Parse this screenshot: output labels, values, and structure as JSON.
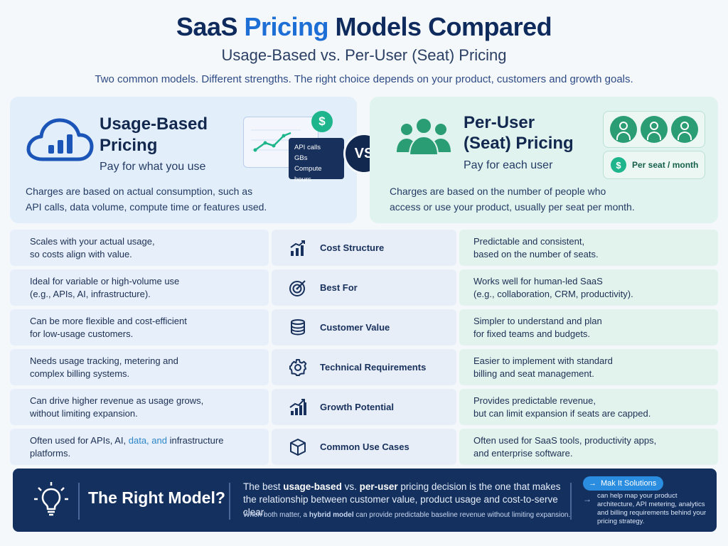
{
  "header": {
    "title_accent_pre": "SaaS",
    "title_accent": "Pricing",
    "title_rest": "Models Compared",
    "subtitle": "Usage-Based vs. Per-User (Seat) Pricing",
    "tagline": "Two common models. Different strengths. The right choice depends on your product, customers and growth goals."
  },
  "usage": {
    "title_line1": "Usage-Based",
    "title_line2": "Pricing",
    "subtitle": "Pay for what you use",
    "desc_line1": "Charges are based on actual consumption, such as",
    "desc_line2": "API calls, data volume, compute time or features used.",
    "icon": "cloud-bar-chart-icon",
    "metrics": [
      "API calls",
      "GBs",
      "Compute hours"
    ],
    "dollar_symbol": "$"
  },
  "vs_label": "VS",
  "seat": {
    "title_line1": "Per-User",
    "title_line2": "(Seat) Pricing",
    "subtitle": "Pay for each user",
    "desc_line1": "Charges are based on the number of people who",
    "desc_line2": "access or use your product, usually per seat per month.",
    "icon": "user-group-icon",
    "pill_label": "Per seat / month",
    "dollar_symbol": "$"
  },
  "rows": [
    {
      "left": "Scales with your actual usage,\nso costs align with value.",
      "mid": "Cost Structure",
      "icon": "chart-up-icon",
      "right": "Predictable and consistent,\nbased on the number of seats."
    },
    {
      "left": "Ideal for variable or high-volume use\n(e.g., APIs, AI, infrastructure).",
      "mid": "Best For",
      "icon": "target-icon",
      "right": "Works well for human-led SaaS\n(e.g., collaboration, CRM, productivity)."
    },
    {
      "left": "Can be more flexible and cost-efficient\nfor low-usage customers.",
      "mid": "Customer Value",
      "icon": "coins-icon",
      "right": "Simpler to understand and plan\nfor fixed teams and budgets."
    },
    {
      "left": "Needs usage tracking, metering and\ncomplex billing systems.",
      "mid": "Technical Requirements",
      "icon": "gear-icon",
      "right": "Easier to implement with standard\nbilling and seat management."
    },
    {
      "left": "Can drive higher revenue as usage grows,\nwithout limiting expansion.",
      "mid": "Growth Potential",
      "icon": "growth-chart-icon",
      "right": "Provides predictable revenue,\nbut can limit expansion if seats are capped."
    },
    {
      "left_pre": "Often used for APIs, AI, ",
      "left_hl": "data, and",
      "left_post": " infrastructure\nplatforms.",
      "mid": "Common Use Cases",
      "icon": "cube-icon",
      "right": "Often used for SaaS tools, productivity apps,\nand enterprise software."
    }
  ],
  "banner": {
    "icon": "lightbulb-icon",
    "title": "The Right Model?",
    "main_1": "The best ",
    "main_b1": "usage-based",
    "main_2": " vs. ",
    "main_b2": "per-user",
    "main_3": " pricing decision is the one that makes the relationship between customer value, product usage and cost-to-serve clear.",
    "note_1": "When both matter, a ",
    "note_b": "hybrid model",
    "note_2": " can provide predictable baseline revenue without limiting expansion.",
    "brand": "Mak It Solutions",
    "brand_desc": "can help map your product architecture, API metering, analytics and billing requirements behind your pricing strategy."
  },
  "colors": {
    "navy": "#0f2a5c",
    "blue_accent": "#1d6fd6",
    "green": "#2a9d74",
    "usage_card": "#e3eefb",
    "seat_card": "#e1f3ef"
  }
}
